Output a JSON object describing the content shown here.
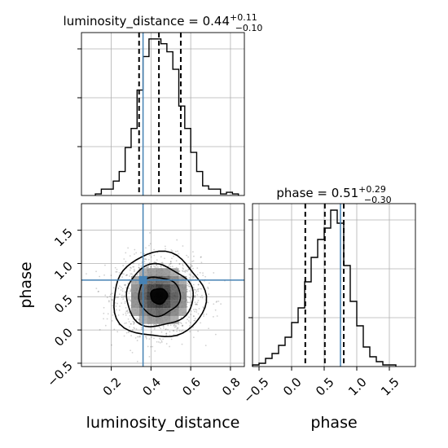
{
  "chart_data": [
    {
      "id": "ld_hist",
      "type": "histogram",
      "title": "luminosity_distance = 0.44",
      "title_sup": "+0.11",
      "title_sub": "−0.10",
      "xlim": [
        0.05,
        0.87
      ],
      "ylim": [
        0,
        1.02
      ],
      "bin_edges": [
        0.12,
        0.15,
        0.18,
        0.21,
        0.24,
        0.27,
        0.3,
        0.33,
        0.36,
        0.39,
        0.42,
        0.45,
        0.48,
        0.51,
        0.54,
        0.57,
        0.6,
        0.63,
        0.66,
        0.69,
        0.72,
        0.75,
        0.78,
        0.81,
        0.84
      ],
      "counts": [
        0.01,
        0.04,
        0.04,
        0.09,
        0.15,
        0.3,
        0.42,
        0.66,
        0.87,
        0.98,
        0.98,
        0.95,
        0.9,
        0.79,
        0.56,
        0.42,
        0.27,
        0.15,
        0.06,
        0.04,
        0.04,
        0.01,
        0.02,
        0.01
      ],
      "quantile_lines": [
        0.34,
        0.44,
        0.55
      ],
      "truth": 0.36,
      "grid": true
    },
    {
      "id": "phase_hist",
      "type": "histogram",
      "title": "phase = 0.51",
      "title_sup": "+0.29",
      "title_sub": "−0.30",
      "xlim": [
        -0.6,
        1.9
      ],
      "ylim": [
        0,
        1.0
      ],
      "xticks": [
        -0.5,
        0.0,
        0.5,
        1.0,
        1.5
      ],
      "xtick_labels": [
        "−0.5",
        "0.0",
        "0.5",
        "1.0",
        "1.5"
      ],
      "xlabel": "phase",
      "bin_edges": [
        -0.6,
        -0.5,
        -0.4,
        -0.3,
        -0.2,
        -0.1,
        0.0,
        0.1,
        0.2,
        0.3,
        0.4,
        0.5,
        0.6,
        0.7,
        0.8,
        0.9,
        1.0,
        1.1,
        1.2,
        1.3,
        1.4,
        1.5,
        1.6
      ],
      "counts": [
        0.01,
        0.02,
        0.05,
        0.08,
        0.13,
        0.18,
        0.27,
        0.36,
        0.52,
        0.67,
        0.78,
        0.85,
        0.96,
        0.88,
        0.62,
        0.4,
        0.25,
        0.12,
        0.06,
        0.03,
        0.01,
        0.01
      ],
      "quantile_lines": [
        0.21,
        0.51,
        0.8
      ],
      "truth": 0.75,
      "grid": true
    },
    {
      "id": "joint",
      "type": "scatter_contour",
      "xlim": [
        0.05,
        0.87
      ],
      "ylim": [
        -0.55,
        1.9
      ],
      "xticks": [
        0.2,
        0.4,
        0.6,
        0.8
      ],
      "xtick_labels": [
        "0.2",
        "0.4",
        "0.6",
        "0.8"
      ],
      "yticks": [
        -0.5,
        0.0,
        0.5,
        1.0,
        1.5
      ],
      "ytick_labels": [
        "−0.5",
        "0.0",
        "0.5",
        "1.0",
        "1.5"
      ],
      "xlabel": "luminosity_distance",
      "ylabel": "phase",
      "center": [
        0.44,
        0.51
      ],
      "sigma": [
        0.105,
        0.29
      ],
      "contour_levels": [
        0.4,
        1.0,
        1.6,
        2.2
      ],
      "truth": [
        0.36,
        0.75
      ],
      "grid": true
    }
  ],
  "colors": {
    "truth": "#4682b4",
    "line": "#000000",
    "grid": "#b0b0b0",
    "points": "#000000"
  }
}
